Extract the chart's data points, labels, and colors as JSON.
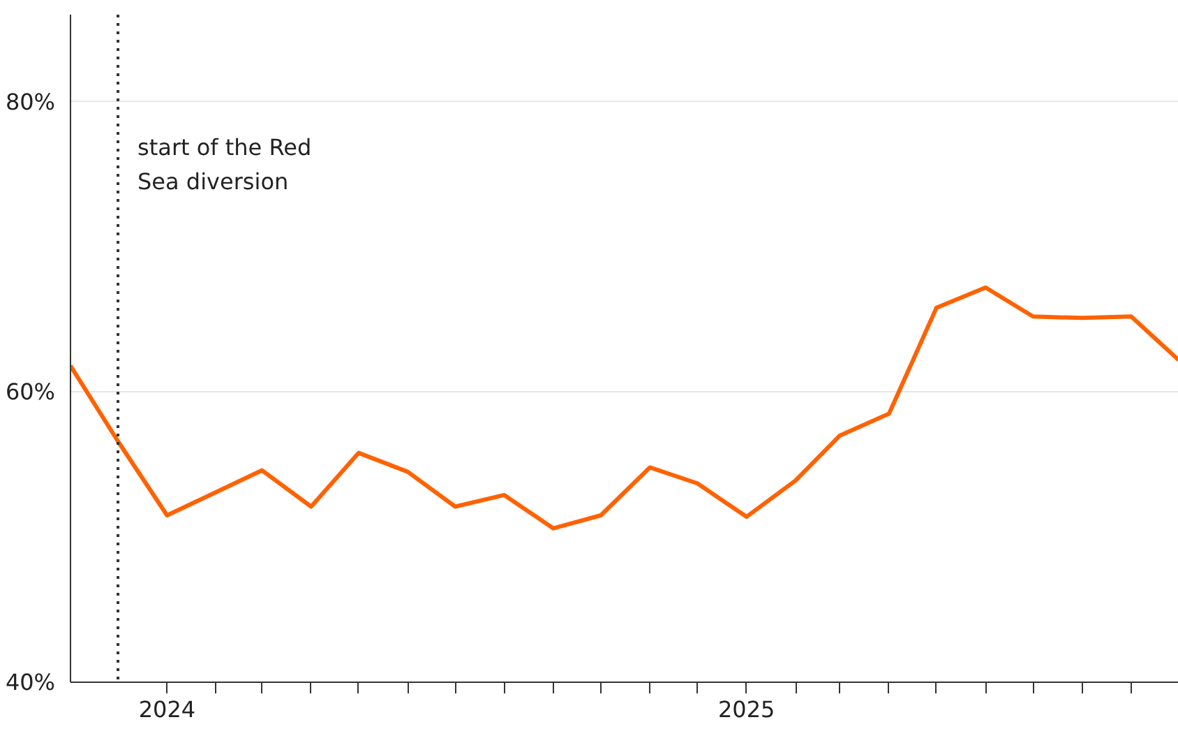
{
  "chart_data": {
    "type": "line",
    "x": [
      "2023-11",
      "2023-12",
      "2024-01",
      "2024-02",
      "2024-03",
      "2024-04",
      "2024-05",
      "2024-06",
      "2024-07",
      "2024-08",
      "2024-09",
      "2024-10",
      "2024-11",
      "2024-12",
      "2025-01",
      "2025-02",
      "2025-03",
      "2025-04",
      "2025-05",
      "2025-06",
      "2025-07",
      "2025-08",
      "2025-09",
      "2025-10"
    ],
    "series": [
      {
        "color": "#ff6200",
        "values": [
          61.8,
          56.6,
          51.5,
          53.1,
          54.6,
          52.1,
          55.8,
          54.5,
          52.1,
          52.9,
          50.6,
          51.5,
          54.8,
          53.7,
          51.4,
          53.9,
          57.0,
          58.5,
          65.8,
          67.2,
          65.2,
          65.1,
          65.2,
          62.2
        ]
      }
    ],
    "xlim": [
      "2023-11",
      "2025-10"
    ],
    "xticks": [
      {
        "value": "2024-01",
        "label": "2024"
      },
      {
        "value": "2024-02",
        "label": null
      },
      {
        "value": "2024-03",
        "label": null
      },
      {
        "value": "2024-04",
        "label": null
      },
      {
        "value": "2024-05",
        "label": null
      },
      {
        "value": "2024-06",
        "label": null
      },
      {
        "value": "2024-07",
        "label": null
      },
      {
        "value": "2024-08",
        "label": null
      },
      {
        "value": "2024-09",
        "label": null
      },
      {
        "value": "2024-10",
        "label": null
      },
      {
        "value": "2024-11",
        "label": null
      },
      {
        "value": "2024-12",
        "label": null
      },
      {
        "value": "2025-01",
        "label": "2025"
      },
      {
        "value": "2025-02",
        "label": null
      },
      {
        "value": "2025-03",
        "label": null
      },
      {
        "value": "2025-04",
        "label": null
      },
      {
        "value": "2025-05",
        "label": null
      },
      {
        "value": "2025-06",
        "label": null
      },
      {
        "value": "2025-07",
        "label": null
      },
      {
        "value": "2025-08",
        "label": null
      },
      {
        "value": "2025-09",
        "label": null
      }
    ],
    "ylim": [
      40,
      86
    ],
    "yticks": [
      {
        "value": 40,
        "label": "40%"
      },
      {
        "value": 60,
        "label": "60%"
      },
      {
        "value": 80,
        "label": "80%"
      }
    ],
    "ref_lines": [
      {
        "axis": "x",
        "value": "2023-12",
        "label": "start of the Red Sea diversion",
        "color": "#333333",
        "line_style": "dotted"
      }
    ],
    "grid": "y",
    "marker": "none",
    "line_style": "solid"
  }
}
